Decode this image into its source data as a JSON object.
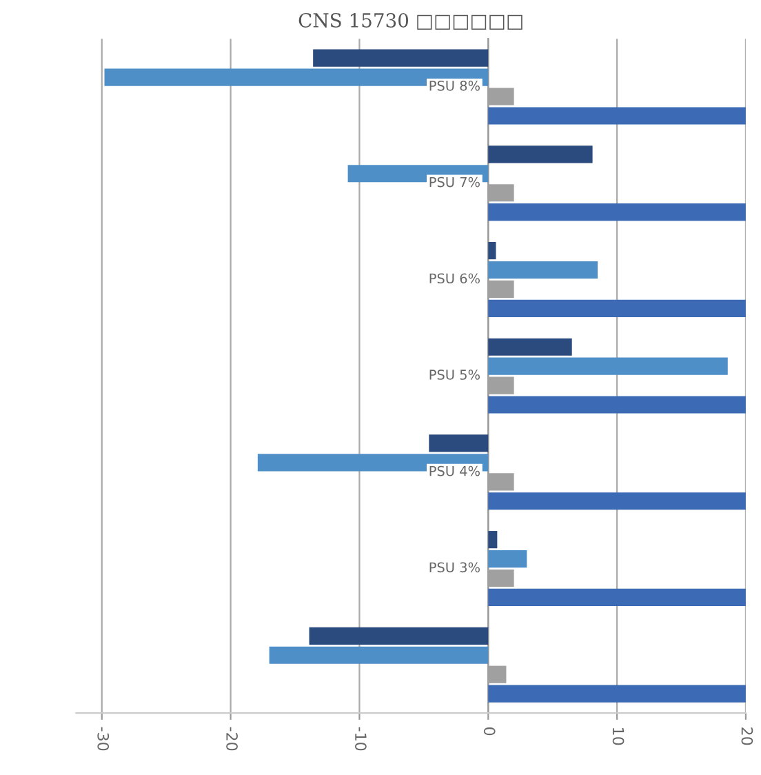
{
  "chart_data": {
    "type": "bar",
    "orientation": "horizontal",
    "title": "CNS 15730 □□□□□□",
    "categories": [
      "PSU 8%",
      "PSU 7%",
      "PSU 6%",
      "PSU 5%",
      "PSU 4%",
      "PSU 3%",
      null
    ],
    "series": [
      {
        "color": "#2b4a7e",
        "values": [
          -13.6,
          8.1,
          0.6,
          6.5,
          -4.6,
          0.7,
          -13.9
        ]
      },
      {
        "color": "#4f8fc8",
        "values": [
          -29.8,
          -10.9,
          8.5,
          18.6,
          -17.9,
          3.0,
          -17.0
        ]
      },
      {
        "color": "#a0a0a0",
        "values": [
          2.0,
          2.0,
          2.0,
          2.0,
          2.0,
          2.0,
          1.4
        ]
      },
      {
        "color": "#3c6ab4",
        "values": [
          20,
          20,
          20,
          20,
          20,
          20,
          20
        ]
      }
    ],
    "xlim": [
      -32,
      20
    ],
    "xticks": [
      -30,
      -20,
      -10,
      0,
      10,
      20
    ],
    "grid": "x",
    "legend": false
  }
}
